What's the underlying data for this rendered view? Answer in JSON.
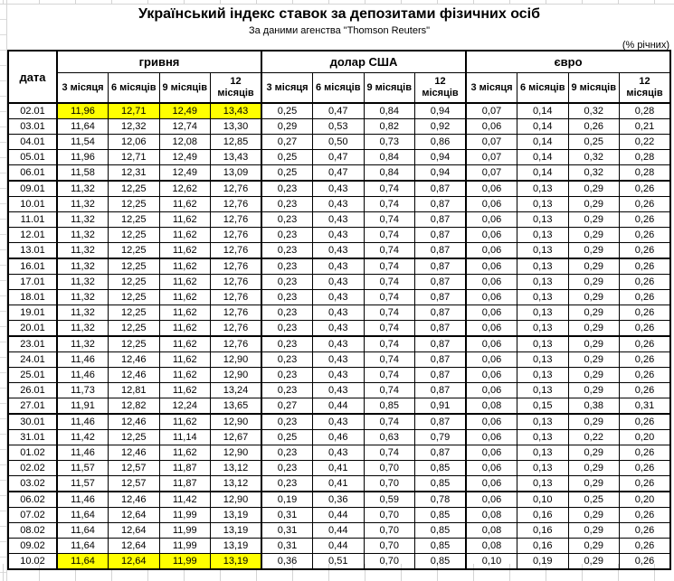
{
  "header": {
    "title": "Український індекс ставок за депозитами фізичних осіб",
    "subtitle": "За даними агенства \"Thomson Reuters\"",
    "units_note": "(% річних)"
  },
  "table": {
    "date_header": "дата",
    "groups": [
      {
        "id": "uah",
        "label": "гривня"
      },
      {
        "id": "usd",
        "label": "долар США"
      },
      {
        "id": "eur",
        "label": "євро"
      }
    ],
    "tenor_headers": [
      "3 місяця",
      "6 місяців",
      "9 місяців",
      "12 місяців"
    ],
    "highlight_color": "#ffff00",
    "rows": [
      {
        "date": "02.01",
        "uah": [
          "11,96",
          "12,71",
          "12,49",
          "13,43"
        ],
        "usd": [
          "0,25",
          "0,47",
          "0,84",
          "0,94"
        ],
        "eur": [
          "0,07",
          "0,14",
          "0,32",
          "0,28"
        ],
        "highlight_uah": true
      },
      {
        "date": "03.01",
        "uah": [
          "11,64",
          "12,32",
          "12,74",
          "13,30"
        ],
        "usd": [
          "0,29",
          "0,53",
          "0,82",
          "0,92"
        ],
        "eur": [
          "0,06",
          "0,14",
          "0,26",
          "0,21"
        ]
      },
      {
        "date": "04.01",
        "uah": [
          "11,54",
          "12,06",
          "12,08",
          "12,85"
        ],
        "usd": [
          "0,27",
          "0,50",
          "0,73",
          "0,86"
        ],
        "eur": [
          "0,07",
          "0,14",
          "0,25",
          "0,22"
        ]
      },
      {
        "date": "05.01",
        "uah": [
          "11,96",
          "12,71",
          "12,49",
          "13,43"
        ],
        "usd": [
          "0,25",
          "0,47",
          "0,84",
          "0,94"
        ],
        "eur": [
          "0,07",
          "0,14",
          "0,32",
          "0,28"
        ]
      },
      {
        "date": "06.01",
        "uah": [
          "11,58",
          "12,31",
          "12,49",
          "13,09"
        ],
        "usd": [
          "0,25",
          "0,47",
          "0,84",
          "0,94"
        ],
        "eur": [
          "0,07",
          "0,14",
          "0,32",
          "0,28"
        ],
        "week_end": true
      },
      {
        "date": "09.01",
        "uah": [
          "11,32",
          "12,25",
          "12,62",
          "12,76"
        ],
        "usd": [
          "0,23",
          "0,43",
          "0,74",
          "0,87"
        ],
        "eur": [
          "0,06",
          "0,13",
          "0,29",
          "0,26"
        ]
      },
      {
        "date": "10.01",
        "uah": [
          "11,32",
          "12,25",
          "11,62",
          "12,76"
        ],
        "usd": [
          "0,23",
          "0,43",
          "0,74",
          "0,87"
        ],
        "eur": [
          "0,06",
          "0,13",
          "0,29",
          "0,26"
        ]
      },
      {
        "date": "11.01",
        "uah": [
          "11,32",
          "12,25",
          "11,62",
          "12,76"
        ],
        "usd": [
          "0,23",
          "0,43",
          "0,74",
          "0,87"
        ],
        "eur": [
          "0,06",
          "0,13",
          "0,29",
          "0,26"
        ]
      },
      {
        "date": "12.01",
        "uah": [
          "11,32",
          "12,25",
          "11,62",
          "12,76"
        ],
        "usd": [
          "0,23",
          "0,43",
          "0,74",
          "0,87"
        ],
        "eur": [
          "0,06",
          "0,13",
          "0,29",
          "0,26"
        ]
      },
      {
        "date": "13.01",
        "uah": [
          "11,32",
          "12,25",
          "11,62",
          "12,76"
        ],
        "usd": [
          "0,23",
          "0,43",
          "0,74",
          "0,87"
        ],
        "eur": [
          "0,06",
          "0,13",
          "0,29",
          "0,26"
        ],
        "week_end": true
      },
      {
        "date": "16.01",
        "uah": [
          "11,32",
          "12,25",
          "11,62",
          "12,76"
        ],
        "usd": [
          "0,23",
          "0,43",
          "0,74",
          "0,87"
        ],
        "eur": [
          "0,06",
          "0,13",
          "0,29",
          "0,26"
        ]
      },
      {
        "date": "17.01",
        "uah": [
          "11,32",
          "12,25",
          "11,62",
          "12,76"
        ],
        "usd": [
          "0,23",
          "0,43",
          "0,74",
          "0,87"
        ],
        "eur": [
          "0,06",
          "0,13",
          "0,29",
          "0,26"
        ]
      },
      {
        "date": "18.01",
        "uah": [
          "11,32",
          "12,25",
          "11,62",
          "12,76"
        ],
        "usd": [
          "0,23",
          "0,43",
          "0,74",
          "0,87"
        ],
        "eur": [
          "0,06",
          "0,13",
          "0,29",
          "0,26"
        ]
      },
      {
        "date": "19.01",
        "uah": [
          "11,32",
          "12,25",
          "11,62",
          "12,76"
        ],
        "usd": [
          "0,23",
          "0,43",
          "0,74",
          "0,87"
        ],
        "eur": [
          "0,06",
          "0,13",
          "0,29",
          "0,26"
        ]
      },
      {
        "date": "20.01",
        "uah": [
          "11,32",
          "12,25",
          "11,62",
          "12,76"
        ],
        "usd": [
          "0,23",
          "0,43",
          "0,74",
          "0,87"
        ],
        "eur": [
          "0,06",
          "0,13",
          "0,29",
          "0,26"
        ],
        "week_end": true
      },
      {
        "date": "23.01",
        "uah": [
          "11,32",
          "12,25",
          "11,62",
          "12,76"
        ],
        "usd": [
          "0,23",
          "0,43",
          "0,74",
          "0,87"
        ],
        "eur": [
          "0,06",
          "0,13",
          "0,29",
          "0,26"
        ]
      },
      {
        "date": "24.01",
        "uah": [
          "11,46",
          "12,46",
          "11,62",
          "12,90"
        ],
        "usd": [
          "0,23",
          "0,43",
          "0,74",
          "0,87"
        ],
        "eur": [
          "0,06",
          "0,13",
          "0,29",
          "0,26"
        ]
      },
      {
        "date": "25.01",
        "uah": [
          "11,46",
          "12,46",
          "11,62",
          "12,90"
        ],
        "usd": [
          "0,23",
          "0,43",
          "0,74",
          "0,87"
        ],
        "eur": [
          "0,06",
          "0,13",
          "0,29",
          "0,26"
        ]
      },
      {
        "date": "26.01",
        "uah": [
          "11,73",
          "12,81",
          "11,62",
          "13,24"
        ],
        "usd": [
          "0,23",
          "0,43",
          "0,74",
          "0,87"
        ],
        "eur": [
          "0,06",
          "0,13",
          "0,29",
          "0,26"
        ]
      },
      {
        "date": "27.01",
        "uah": [
          "11,91",
          "12,82",
          "12,24",
          "13,65"
        ],
        "usd": [
          "0,27",
          "0,44",
          "0,85",
          "0,91"
        ],
        "eur": [
          "0,08",
          "0,15",
          "0,38",
          "0,31"
        ],
        "week_end": true
      },
      {
        "date": "30.01",
        "uah": [
          "11,46",
          "12,46",
          "11,62",
          "12,90"
        ],
        "usd": [
          "0,23",
          "0,43",
          "0,74",
          "0,87"
        ],
        "eur": [
          "0,06",
          "0,13",
          "0,29",
          "0,26"
        ]
      },
      {
        "date": "31.01",
        "uah": [
          "11,42",
          "12,25",
          "11,14",
          "12,67"
        ],
        "usd": [
          "0,25",
          "0,46",
          "0,63",
          "0,79"
        ],
        "eur": [
          "0,06",
          "0,13",
          "0,22",
          "0,20"
        ]
      },
      {
        "date": "01.02",
        "uah": [
          "11,46",
          "12,46",
          "11,62",
          "12,90"
        ],
        "usd": [
          "0,23",
          "0,43",
          "0,74",
          "0,87"
        ],
        "eur": [
          "0,06",
          "0,13",
          "0,29",
          "0,26"
        ]
      },
      {
        "date": "02.02",
        "uah": [
          "11,57",
          "12,57",
          "11,87",
          "13,12"
        ],
        "usd": [
          "0,23",
          "0,41",
          "0,70",
          "0,85"
        ],
        "eur": [
          "0,06",
          "0,13",
          "0,29",
          "0,26"
        ]
      },
      {
        "date": "03.02",
        "uah": [
          "11,57",
          "12,57",
          "11,87",
          "13,12"
        ],
        "usd": [
          "0,23",
          "0,41",
          "0,70",
          "0,85"
        ],
        "eur": [
          "0,06",
          "0,13",
          "0,29",
          "0,26"
        ],
        "week_end": true
      },
      {
        "date": "06.02",
        "uah": [
          "11,46",
          "12,46",
          "11,42",
          "12,90"
        ],
        "usd": [
          "0,19",
          "0,36",
          "0,59",
          "0,78"
        ],
        "eur": [
          "0,06",
          "0,10",
          "0,25",
          "0,20"
        ]
      },
      {
        "date": "07.02",
        "uah": [
          "11,64",
          "12,64",
          "11,99",
          "13,19"
        ],
        "usd": [
          "0,31",
          "0,44",
          "0,70",
          "0,85"
        ],
        "eur": [
          "0,08",
          "0,16",
          "0,29",
          "0,26"
        ]
      },
      {
        "date": "08.02",
        "uah": [
          "11,64",
          "12,64",
          "11,99",
          "13,19"
        ],
        "usd": [
          "0,31",
          "0,44",
          "0,70",
          "0,85"
        ],
        "eur": [
          "0,08",
          "0,16",
          "0,29",
          "0,26"
        ]
      },
      {
        "date": "09.02",
        "uah": [
          "11,64",
          "12,64",
          "11,99",
          "13,19"
        ],
        "usd": [
          "0,31",
          "0,44",
          "0,70",
          "0,85"
        ],
        "eur": [
          "0,08",
          "0,16",
          "0,29",
          "0,26"
        ]
      },
      {
        "date": "10.02",
        "uah": [
          "11,64",
          "12,64",
          "11,99",
          "13,19"
        ],
        "usd": [
          "0,36",
          "0,51",
          "0,70",
          "0,85"
        ],
        "eur": [
          "0,10",
          "0,19",
          "0,29",
          "0,26"
        ],
        "highlight_uah": true,
        "week_end": true
      }
    ]
  }
}
